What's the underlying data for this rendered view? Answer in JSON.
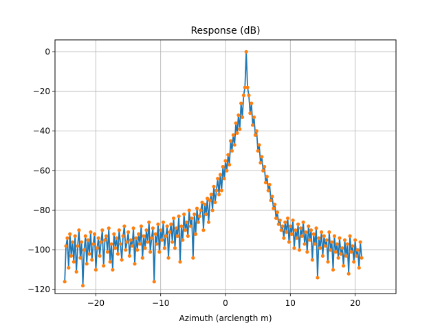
{
  "chart_data": {
    "type": "line",
    "title": "Response (dB)",
    "xlabel": "Azimuth (arclength m)",
    "ylabel": "",
    "xlim": [
      -26.3,
      26.3
    ],
    "ylim": [
      -122,
      6
    ],
    "xticks": [
      -20,
      -10,
      0,
      10,
      20
    ],
    "yticks": [
      0,
      -20,
      -40,
      -60,
      -80,
      -100,
      -120
    ],
    "xtick_labels": [
      "−20",
      "−10",
      "0",
      "10",
      "20"
    ],
    "ytick_labels": [
      "0",
      "−20",
      "−40",
      "−60",
      "−80",
      "−100",
      "−120"
    ],
    "grid": true,
    "x_start": -24.8,
    "x_step": 0.2,
    "series": [
      {
        "line_color": "#1f77b4",
        "marker_color": "#ff7f0e",
        "values": [
          -116,
          -98,
          -94,
          -109,
          -92,
          -103,
          -96,
          -106,
          -93,
          -111,
          -98,
          -90,
          -104,
          -96,
          -118,
          -100,
          -93,
          -107,
          -95,
          -102,
          -91,
          -105,
          -97,
          -92,
          -110,
          -99,
          -94,
          -103,
          -96,
          -90,
          -108,
          -95,
          -93,
          -101,
          -89,
          -106,
          -97,
          -110,
          -92,
          -99,
          -94,
          -102,
          -90,
          -97,
          -105,
          -93,
          -88,
          -100,
          -96,
          -91,
          -103,
          -95,
          -98,
          -89,
          -107,
          -94,
          -100,
          -92,
          -97,
          -88,
          -104,
          -93,
          -99,
          -90,
          -96,
          -86,
          -101,
          -94,
          -89,
          -116,
          -92,
          -97,
          -87,
          -101,
          -90,
          -95,
          -86,
          -99,
          -93,
          -88,
          -104,
          -91,
          -87,
          -96,
          -84,
          -99,
          -89,
          -93,
          -83,
          -106,
          -88,
          -95,
          -82,
          -90,
          -86,
          -93,
          -80,
          -88,
          -84,
          -104,
          -82,
          -92,
          -79,
          -86,
          -83,
          -80,
          -76,
          -90,
          -77,
          -82,
          -74,
          -86,
          -75,
          -72,
          -80,
          -68,
          -76,
          -70,
          -64,
          -72,
          -62,
          -70,
          -58,
          -64,
          -55,
          -60,
          -52,
          -57,
          -45,
          -50,
          -42,
          -47,
          -36,
          -41,
          -32,
          -39,
          -26,
          -33,
          -22,
          -18,
          0,
          -18,
          -22,
          -31,
          -26,
          -37,
          -33,
          -42,
          -40,
          -50,
          -47,
          -56,
          -53,
          -60,
          -58,
          -66,
          -63,
          -70,
          -67,
          -75,
          -73,
          -79,
          -77,
          -84,
          -81,
          -87,
          -85,
          -90,
          -88,
          -94,
          -86,
          -91,
          -84,
          -96,
          -88,
          -92,
          -85,
          -99,
          -90,
          -94,
          -87,
          -100,
          -89,
          -93,
          -86,
          -97,
          -91,
          -101,
          -88,
          -95,
          -90,
          -105,
          -92,
          -97,
          -89,
          -114,
          -94,
          -99,
          -91,
          -103,
          -93,
          -98,
          -95,
          -106,
          -91,
          -100,
          -96,
          -110,
          -93,
          -101,
          -97,
          -104,
          -94,
          -102,
          -99,
          -108,
          -95,
          -103,
          -97,
          -112,
          -93,
          -101,
          -98,
          -106,
          -95,
          -103,
          -100,
          -109,
          -96,
          -104
        ]
      }
    ]
  }
}
